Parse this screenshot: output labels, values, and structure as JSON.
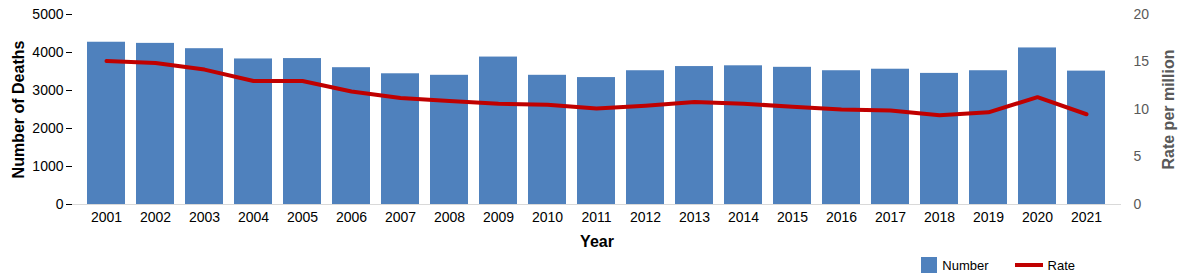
{
  "chart_data": {
    "type": "bar",
    "x_label": "Year",
    "y_label": "Number of Deaths",
    "y2_label": "Rate per million",
    "categories": [
      "2001",
      "2002",
      "2003",
      "2004",
      "2005",
      "2006",
      "2007",
      "2008",
      "2009",
      "2010",
      "2011",
      "2012",
      "2013",
      "2014",
      "2015",
      "2016",
      "2017",
      "2018",
      "2019",
      "2020",
      "2021"
    ],
    "series": [
      {
        "name": "Number",
        "type": "bar",
        "color": "#4f81bd",
        "values": [
          4270,
          4240,
          4100,
          3830,
          3840,
          3600,
          3440,
          3400,
          3880,
          3400,
          3340,
          3520,
          3630,
          3650,
          3610,
          3520,
          3560,
          3450,
          3520,
          4120,
          3510
        ]
      },
      {
        "name": "Rate",
        "type": "line",
        "color": "#c00000",
        "axis": "y2",
        "values": [
          15.1,
          14.9,
          14.2,
          13.0,
          13.0,
          11.9,
          11.2,
          10.9,
          10.6,
          10.5,
          10.1,
          10.4,
          10.8,
          10.6,
          10.3,
          10.0,
          9.9,
          9.4,
          9.7,
          11.3,
          9.5
        ]
      }
    ],
    "ylim": [
      0,
      5000
    ],
    "yticks": [
      0,
      1000,
      2000,
      3000,
      4000,
      5000
    ],
    "y2lim": [
      0,
      20
    ],
    "y2ticks": [
      0,
      5,
      10,
      15,
      20
    ],
    "grid": false,
    "legend": "bottom-right"
  }
}
